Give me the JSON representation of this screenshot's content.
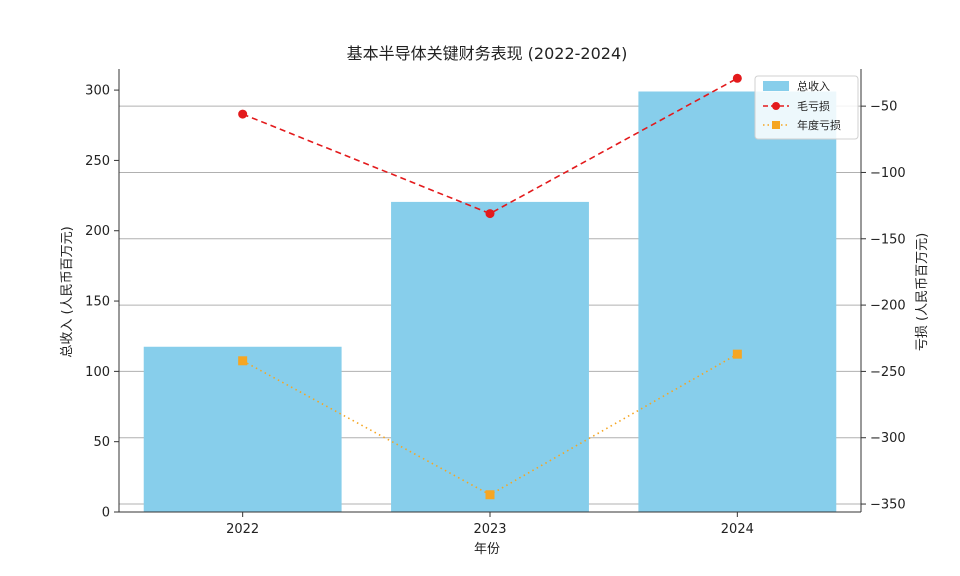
{
  "chart_data": {
    "type": "bar",
    "title": "基本半导体关键财务表现 (2022-2024)",
    "xlabel": "年份",
    "ylabel_left": "总收入 (人民币百万元)",
    "ylabel_right": "亏损 (人民币百万元)",
    "categories": [
      "2022",
      "2023",
      "2024"
    ],
    "ylim_left": [
      0,
      315
    ],
    "ylim_right": [
      -356,
      -22
    ],
    "yticks_left": [
      0,
      50,
      100,
      150,
      200,
      250,
      300
    ],
    "yticks_right": [
      -350,
      -300,
      -250,
      -200,
      -150,
      -100,
      -50
    ],
    "grid": "horizontal (right axis)",
    "legend_position": "top-right",
    "series": [
      {
        "name": "总收入",
        "kind": "bar",
        "axis": "left",
        "color": "#87CEEB",
        "values": [
          117.5,
          220.5,
          299.0
        ]
      },
      {
        "name": "毛亏损",
        "kind": "line",
        "axis": "right",
        "color": "#e31a1c",
        "marker": "circle",
        "style": "dashed",
        "values": [
          -56,
          -131,
          -29
        ]
      },
      {
        "name": "年度亏损",
        "kind": "line",
        "axis": "right",
        "color": "#f5a623",
        "marker": "square",
        "style": "dotted",
        "values": [
          -242,
          -343,
          -237
        ]
      }
    ]
  }
}
